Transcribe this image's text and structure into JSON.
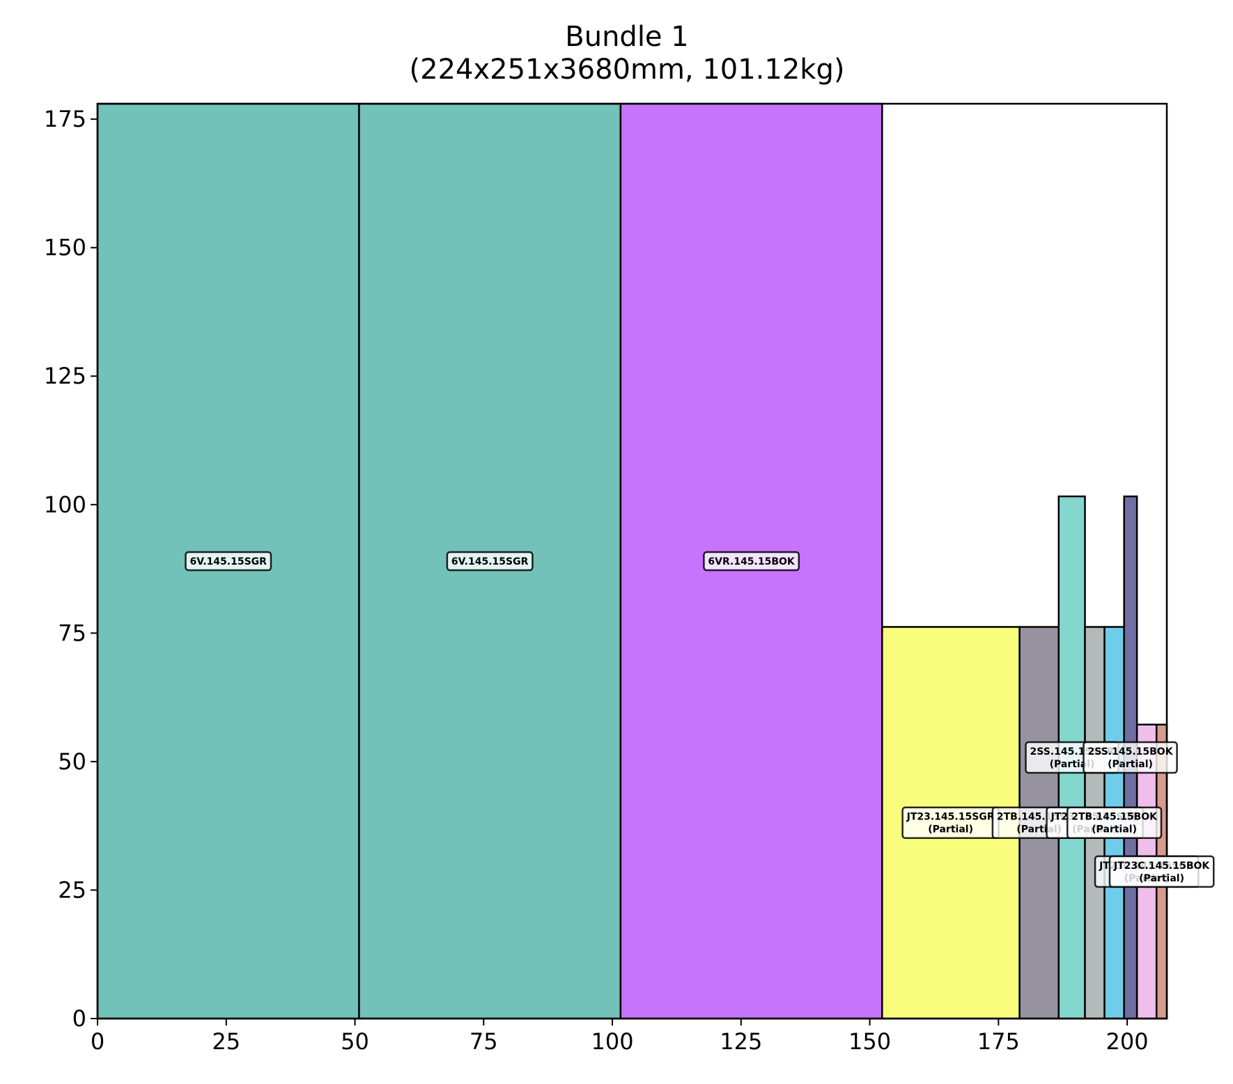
{
  "chart_data": {
    "type": "bar",
    "title": "Bundle 1",
    "subtitle": "(224x251x3680mm, 101.12kg)",
    "xlabel": "",
    "ylabel": "",
    "xlim": [
      0,
      207.7
    ],
    "ylim": [
      0,
      178
    ],
    "xticks": [
      0,
      25,
      50,
      75,
      100,
      125,
      150,
      175,
      200
    ],
    "yticks": [
      0,
      25,
      50,
      75,
      100,
      125,
      150,
      175
    ],
    "grid": false,
    "legend": "none",
    "rects": [
      {
        "x0": 0,
        "x1": 50.8,
        "y1": 178,
        "color": "#72c2b9"
      },
      {
        "x0": 50.8,
        "x1": 101.6,
        "y1": 178,
        "color": "#72c2b9"
      },
      {
        "x0": 101.6,
        "x1": 152.4,
        "y1": 178,
        "color": "#c674fd"
      },
      {
        "x0": 152.4,
        "x1": 179.1,
        "y1": 76.2,
        "color": "#f9fd7c"
      },
      {
        "x0": 179.1,
        "x1": 186.7,
        "y1": 76.2,
        "color": "#96929f"
      },
      {
        "x0": 186.7,
        "x1": 191.8,
        "y1": 101.6,
        "color": "#84d7cf"
      },
      {
        "x0": 191.8,
        "x1": 195.6,
        "y1": 76.2,
        "color": "#b4b9b9"
      },
      {
        "x0": 195.6,
        "x1": 199.4,
        "y1": 76.2,
        "color": "#6fcde9"
      },
      {
        "x0": 199.4,
        "x1": 201.9,
        "y1": 101.6,
        "color": "#6f6fa4"
      },
      {
        "x0": 201.9,
        "x1": 205.7,
        "y1": 57.2,
        "color": "#efbeea"
      },
      {
        "x0": 205.7,
        "x1": 207.7,
        "y1": 57.2,
        "color": "#d79b8d"
      }
    ],
    "labels": [
      {
        "x": 25.4,
        "y": 89,
        "lines": [
          "6V.145.15SGR"
        ]
      },
      {
        "x": 76.2,
        "y": 89,
        "lines": [
          "6V.145.15SGR"
        ]
      },
      {
        "x": 127,
        "y": 89,
        "lines": [
          "6VR.145.15BOK"
        ]
      },
      {
        "x": 165.7,
        "y": 38.1,
        "lines": [
          "JT23.145.15SGR",
          "(Partial)"
        ]
      },
      {
        "x": 182.9,
        "y": 38.1,
        "lines": [
          "2TB.145.15SGR",
          "(Partial)"
        ]
      },
      {
        "x": 193.7,
        "y": 38.1,
        "lines": [
          "JT23.145.15SGR",
          "(Partial)"
        ]
      },
      {
        "x": 197.5,
        "y": 38.1,
        "lines": [
          "2TB.145.15BOK",
          "(Partial)"
        ]
      },
      {
        "x": 189.3,
        "y": 50.8,
        "lines": [
          "2SS.145.15SGR",
          "(Partial)"
        ]
      },
      {
        "x": 200.6,
        "y": 50.8,
        "lines": [
          "2SS.145.15BOK",
          "(Partial)"
        ]
      },
      {
        "x": 203.8,
        "y": 28.6,
        "lines": [
          "JT23C.145.15SGR",
          "(Partial)"
        ]
      },
      {
        "x": 206.7,
        "y": 28.6,
        "lines": [
          "JT23C.145.15BOK",
          "(Partial)"
        ]
      }
    ]
  }
}
